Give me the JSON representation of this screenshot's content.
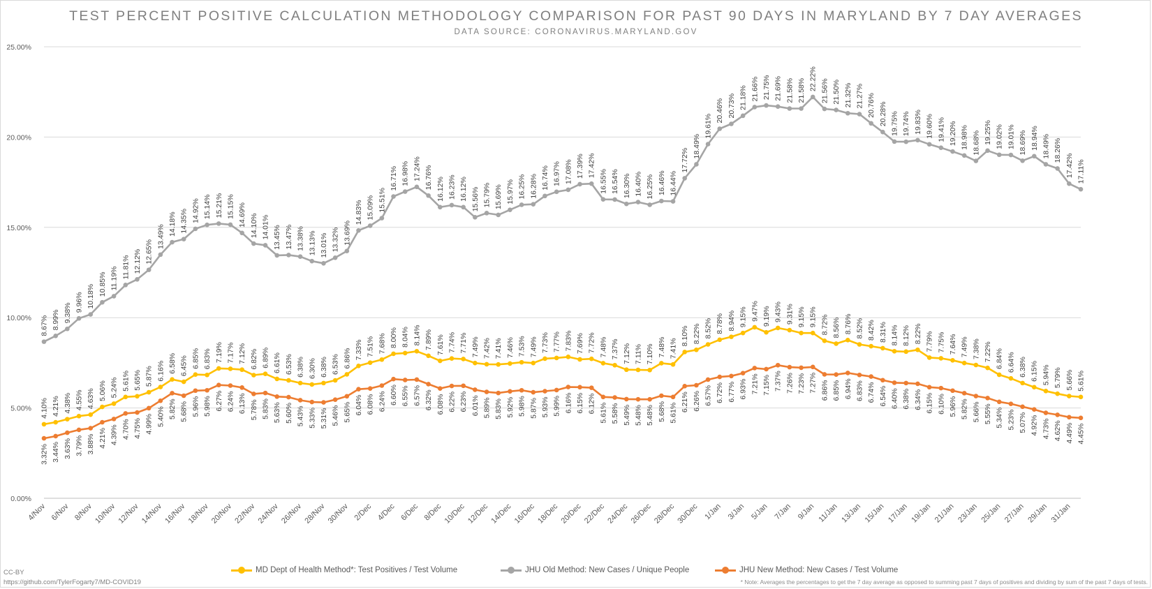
{
  "title": "TEST PERCENT POSITIVE CALCULATION METHODOLOGY COMPARISON FOR PAST 90 DAYS IN MARYLAND BY 7 DAY AVERAGES",
  "subtitle": "DATA SOURCE: CORONAVIRUS.MARYLAND.GOV",
  "credit": "CC-BY",
  "url": "https://github.com/TylerFogarty7/MD-COVID19",
  "note": "* Note: Averages the percentages to get the 7 day average as opposed to summing past 7 days of positives and dividing by sum of the past 7 days of tests.",
  "chart_data": {
    "type": "line",
    "grid": "horizontal",
    "legend_position": "bottom",
    "ylim": [
      0,
      25
    ],
    "yticks": [
      "0.00%",
      "5.00%",
      "10.00%",
      "15.00%",
      "20.00%",
      "25.00%"
    ],
    "categories": [
      "4/Nov",
      "5/Nov",
      "6/Nov",
      "7/Nov",
      "8/Nov",
      "9/Nov",
      "10/Nov",
      "11/Nov",
      "12/Nov",
      "13/Nov",
      "14/Nov",
      "15/Nov",
      "16/Nov",
      "17/Nov",
      "18/Nov",
      "19/Nov",
      "20/Nov",
      "21/Nov",
      "22/Nov",
      "23/Nov",
      "24/Nov",
      "25/Nov",
      "26/Nov",
      "27/Nov",
      "28/Nov",
      "29/Nov",
      "30/Nov",
      "1/Dec",
      "2/Dec",
      "3/Dec",
      "4/Dec",
      "5/Dec",
      "6/Dec",
      "7/Dec",
      "8/Dec",
      "9/Dec",
      "10/Dec",
      "11/Dec",
      "12/Dec",
      "13/Dec",
      "14/Dec",
      "15/Dec",
      "16/Dec",
      "17/Dec",
      "18/Dec",
      "19/Dec",
      "20/Dec",
      "21/Dec",
      "22/Dec",
      "23/Dec",
      "24/Dec",
      "25/Dec",
      "26/Dec",
      "27/Dec",
      "28/Dec",
      "29/Dec",
      "30/Dec",
      "31/Dec",
      "1/Jan",
      "2/Jan",
      "3/Jan",
      "4/Jan",
      "5/Jan",
      "6/Jan",
      "7/Jan",
      "8/Jan",
      "9/Jan",
      "10/Jan",
      "11/Jan",
      "12/Jan",
      "13/Jan",
      "14/Jan",
      "15/Jan",
      "16/Jan",
      "17/Jan",
      "18/Jan",
      "19/Jan",
      "20/Jan",
      "21/Jan",
      "22/Jan",
      "23/Jan",
      "24/Jan",
      "25/Jan",
      "26/Jan",
      "27/Jan",
      "28/Jan",
      "29/Jan",
      "30/Jan",
      "31/Jan",
      "1/Feb"
    ],
    "tick_every": 2,
    "series": [
      {
        "name": "MD Dept of Health Method*: Test Positives / Test Volume",
        "color": "#ffc000",
        "label_position": "above",
        "values": [
          4.1,
          4.21,
          4.38,
          4.55,
          4.63,
          5.06,
          5.24,
          5.61,
          5.65,
          5.87,
          6.16,
          6.58,
          6.45,
          6.85,
          6.83,
          7.19,
          7.17,
          7.12,
          6.82,
          6.89,
          6.61,
          6.53,
          6.38,
          6.3,
          6.38,
          6.53,
          6.86,
          7.33,
          7.51,
          7.68,
          8.0,
          8.04,
          8.14,
          7.89,
          7.61,
          7.74,
          7.71,
          7.49,
          7.42,
          7.41,
          7.46,
          7.53,
          7.49,
          7.73,
          7.77,
          7.83,
          7.69,
          7.72,
          7.48,
          7.37,
          7.12,
          7.11,
          7.1,
          7.48,
          7.41,
          8.1,
          8.22,
          8.52,
          8.78,
          8.94,
          9.15,
          9.47,
          9.19,
          9.43,
          9.31,
          9.15,
          9.15,
          8.72,
          8.56,
          8.76,
          8.52,
          8.42,
          8.31,
          8.14,
          8.12,
          8.22,
          7.79,
          7.75,
          7.64,
          7.49,
          7.38,
          7.22,
          6.84,
          6.64,
          6.38,
          6.15,
          5.94,
          5.79,
          5.66,
          5.61
        ]
      },
      {
        "name": "JHU Old Method: New Cases / Unique People",
        "color": "#a5a5a5",
        "label_position": "above",
        "values": [
          8.67,
          8.99,
          9.38,
          9.96,
          10.18,
          10.85,
          11.19,
          11.81,
          12.12,
          12.65,
          13.49,
          14.18,
          14.35,
          14.92,
          15.14,
          15.21,
          15.15,
          14.69,
          14.1,
          14.01,
          13.45,
          13.47,
          13.38,
          13.13,
          13.01,
          13.32,
          13.69,
          14.83,
          15.09,
          15.51,
          16.71,
          16.98,
          17.24,
          16.76,
          16.12,
          16.23,
          16.12,
          15.56,
          15.79,
          15.69,
          15.97,
          16.25,
          16.28,
          16.74,
          16.97,
          17.08,
          17.39,
          17.42,
          16.55,
          16.54,
          16.3,
          16.4,
          16.25,
          16.46,
          16.44,
          17.72,
          18.49,
          19.61,
          20.46,
          20.73,
          21.18,
          21.66,
          21.75,
          21.69,
          21.58,
          21.58,
          22.22,
          21.56,
          21.5,
          21.32,
          21.27,
          20.76,
          20.28,
          19.75,
          19.74,
          19.83,
          19.6,
          19.41,
          19.2,
          18.98,
          18.68,
          19.25,
          19.02,
          19.01,
          18.69,
          18.94,
          18.49,
          18.26,
          17.42,
          17.11
        ]
      },
      {
        "name": "JHU New Method: New Cases / Test Volume",
        "color": "#ed7d31",
        "label_position": "below",
        "values": [
          3.32,
          3.44,
          3.63,
          3.79,
          3.88,
          4.21,
          4.39,
          4.7,
          4.75,
          4.99,
          5.4,
          5.82,
          5.68,
          5.96,
          5.98,
          6.27,
          6.24,
          6.13,
          5.78,
          5.83,
          5.63,
          5.6,
          5.43,
          5.33,
          5.31,
          5.46,
          5.65,
          6.04,
          6.08,
          6.24,
          6.6,
          6.55,
          6.57,
          6.32,
          6.08,
          6.22,
          6.23,
          6.01,
          5.89,
          5.83,
          5.92,
          5.98,
          5.87,
          5.93,
          5.99,
          6.16,
          6.15,
          6.12,
          5.61,
          5.58,
          5.49,
          5.48,
          5.48,
          5.68,
          5.61,
          6.21,
          6.26,
          6.57,
          6.72,
          6.77,
          6.93,
          7.21,
          7.15,
          7.37,
          7.26,
          7.23,
          7.27,
          6.86,
          6.85,
          6.94,
          6.83,
          6.74,
          6.54,
          6.4,
          6.38,
          6.34,
          6.15,
          6.1,
          5.96,
          5.82,
          5.66,
          5.55,
          5.34,
          5.23,
          5.07,
          4.92,
          4.73,
          4.62,
          4.49,
          4.45
        ]
      }
    ]
  }
}
